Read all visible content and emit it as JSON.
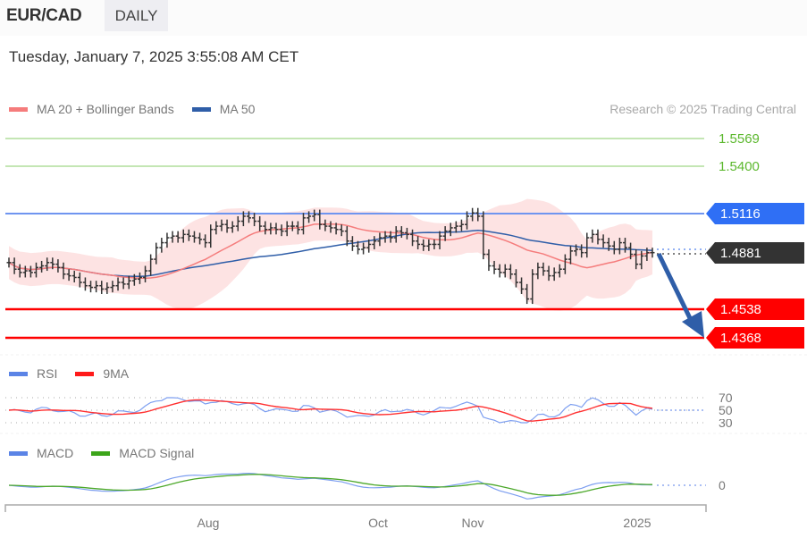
{
  "header": {
    "symbol": "EUR/CAD",
    "period": "DAILY",
    "datetime": "Tuesday, January 7, 2025 3:55:08 AM CET"
  },
  "legend_main": [
    {
      "label": "MA 20 + Bollinger Bands",
      "color": "#f57c7c"
    },
    {
      "label": "MA 50",
      "color": "#2f5ea8"
    }
  ],
  "copyright": "Research © 2025 Trading Central",
  "legend_rsi": [
    {
      "label": "RSI",
      "color": "#5b84e6"
    },
    {
      "label": "9MA",
      "color": "#ff1a1a"
    }
  ],
  "legend_macd": [
    {
      "label": "MACD",
      "color": "#5b84e6"
    },
    {
      "label": "MACD Signal",
      "color": "#3ca51a"
    }
  ],
  "levels": [
    {
      "value": "1.5569",
      "type": "target",
      "color": "#5cb82e",
      "style": "text"
    },
    {
      "value": "1.5400",
      "type": "target",
      "color": "#5cb82e",
      "style": "text"
    },
    {
      "value": "1.5116",
      "type": "pivot",
      "color": "#2f6ff5",
      "style": "tag"
    },
    {
      "value": "1.4881",
      "type": "last",
      "color": "#333333",
      "style": "tag"
    },
    {
      "value": "1.4538",
      "type": "support",
      "color": "#ff0000",
      "style": "tag"
    },
    {
      "value": "1.4368",
      "type": "support",
      "color": "#ff0000",
      "style": "tag"
    }
  ],
  "rsi_axis": [
    "70",
    "50",
    "30"
  ],
  "macd_axis": [
    "0"
  ],
  "x_axis": [
    "Aug",
    "Oct",
    "Nov",
    "2025"
  ],
  "chart_data": [
    {
      "type": "ohlc",
      "title": "EUR/CAD DAILY",
      "y_levels": {
        "resistance_2": 1.5569,
        "resistance_1": 1.54,
        "pivot": 1.5116,
        "last": 1.4881,
        "support_1": 1.4538,
        "support_2": 1.4368
      },
      "ylim": [
        1.425,
        1.565
      ],
      "x_ticks": [
        "Aug",
        "Oct",
        "Nov",
        "2025"
      ],
      "series": [
        {
          "name": "Close (approx)",
          "values": [
            1.482,
            1.478,
            1.476,
            1.477,
            1.476,
            1.479,
            1.48,
            1.482,
            1.481,
            1.479,
            1.475,
            1.474,
            1.473,
            1.47,
            1.468,
            1.467,
            1.468,
            1.466,
            1.467,
            1.468,
            1.47,
            1.469,
            1.471,
            1.472,
            1.473,
            1.477,
            1.484,
            1.491,
            1.494,
            1.497,
            1.498,
            1.497,
            1.499,
            1.498,
            1.497,
            1.496,
            1.494,
            1.502,
            1.504,
            1.505,
            1.503,
            1.504,
            1.507,
            1.51,
            1.509,
            1.507,
            1.504,
            1.502,
            1.503,
            1.502,
            1.501,
            1.504,
            1.504,
            1.502,
            1.509,
            1.51,
            1.511,
            1.505,
            1.504,
            1.503,
            1.502,
            1.501,
            1.495,
            1.492,
            1.49,
            1.491,
            1.493,
            1.495,
            1.497,
            1.498,
            1.497,
            1.501,
            1.5,
            1.499,
            1.495,
            1.493,
            1.492,
            1.493,
            1.493,
            1.498,
            1.501,
            1.503,
            1.504,
            1.505,
            1.51,
            1.512,
            1.51,
            1.487,
            1.48,
            1.478,
            1.476,
            1.478,
            1.475,
            1.47,
            1.466,
            1.46,
            1.475,
            1.479,
            1.477,
            1.474,
            1.476,
            1.478,
            1.484,
            1.489,
            1.49,
            1.488,
            1.497,
            1.499,
            1.496,
            1.494,
            1.492,
            1.49,
            1.494,
            1.491,
            1.487,
            1.481,
            1.486,
            1.488,
            1.488
          ]
        },
        {
          "name": "MA 20",
          "color": "#f57c7c"
        },
        {
          "name": "MA 50",
          "color": "#2f5ea8"
        }
      ],
      "annotation": "Blue arrow projecting decline from 1.4881 toward 1.4368"
    },
    {
      "type": "line",
      "title": "RSI",
      "ylim": [
        30,
        70
      ],
      "series": [
        {
          "name": "RSI"
        },
        {
          "name": "9MA"
        }
      ],
      "last": 50
    },
    {
      "type": "line",
      "title": "MACD",
      "series": [
        {
          "name": "MACD"
        },
        {
          "name": "MACD Signal"
        }
      ],
      "last": 0
    }
  ]
}
